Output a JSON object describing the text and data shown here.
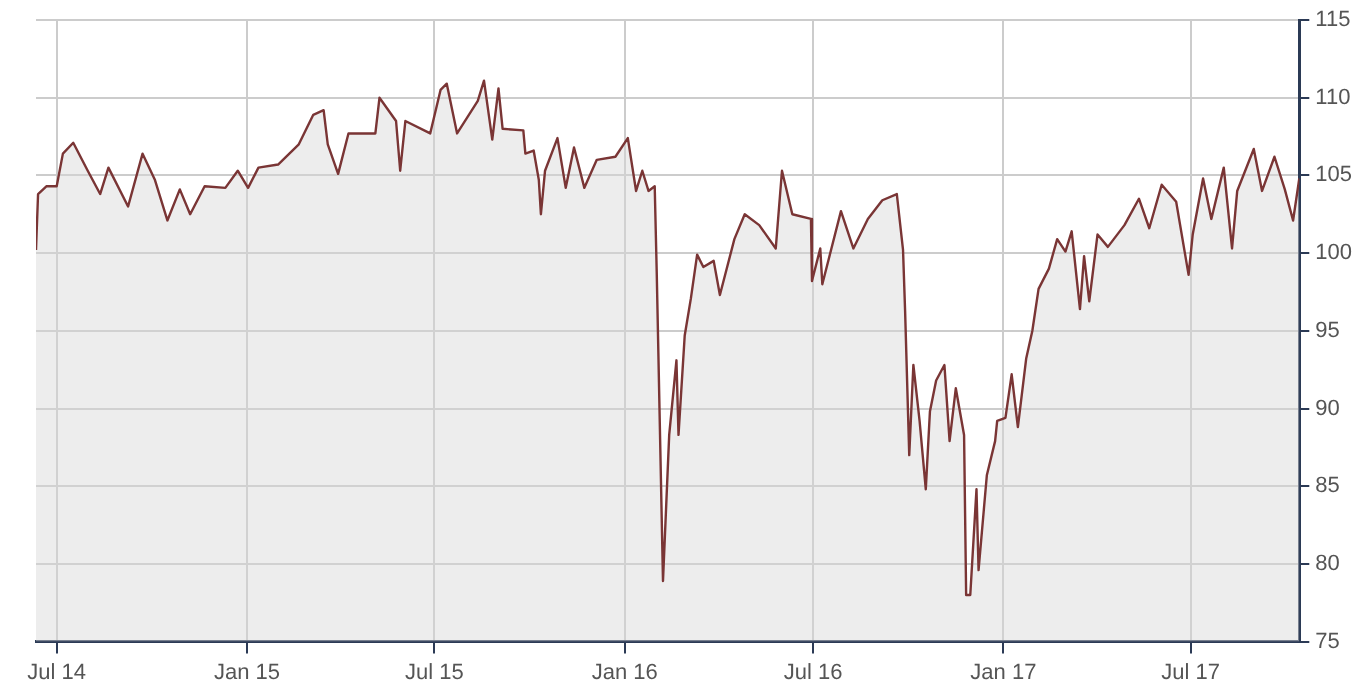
{
  "chart_data": {
    "type": "area",
    "x": [
      "2014-06-11",
      "2014-06-13",
      "2014-06-21",
      "2014-07-01",
      "2014-07-07",
      "2014-07-17",
      "2014-07-31",
      "2014-08-12",
      "2014-08-20",
      "2014-09-08",
      "2014-09-22",
      "2014-10-04",
      "2014-10-16",
      "2014-10-28",
      "2014-11-07",
      "2014-11-21",
      "2014-12-11",
      "2014-12-23",
      "2015-01-02",
      "2015-01-12",
      "2015-01-31",
      "2015-02-20",
      "2015-03-06",
      "2015-03-16",
      "2015-03-20",
      "2015-03-30",
      "2015-04-09",
      "2015-05-05",
      "2015-05-09",
      "2015-05-25",
      "2015-05-29",
      "2015-06-03",
      "2015-06-27",
      "2015-07-07",
      "2015-07-13",
      "2015-07-23",
      "2015-08-12",
      "2015-08-18",
      "2015-08-26",
      "2015-09-01",
      "2015-09-05",
      "2015-09-25",
      "2015-09-27",
      "2015-10-05",
      "2015-10-10",
      "2015-10-12",
      "2015-10-16",
      "2015-10-28",
      "2015-11-05",
      "2015-11-13",
      "2015-11-23",
      "2015-12-05",
      "2015-12-23",
      "2016-01-04",
      "2016-01-12",
      "2016-01-18",
      "2016-01-24",
      "2016-01-30",
      "2016-02-01",
      "2016-02-07",
      "2016-02-13",
      "2016-02-20",
      "2016-02-22",
      "2016-02-28",
      "2016-03-05",
      "2016-03-11",
      "2016-03-17",
      "2016-03-27",
      "2016-04-02",
      "2016-04-16",
      "2016-04-26",
      "2016-05-10",
      "2016-05-26",
      "2016-06-01",
      "2016-06-11",
      "2016-06-29",
      "2016-06-30",
      "2016-07-08",
      "2016-07-10",
      "2016-07-28",
      "2016-08-09",
      "2016-08-23",
      "2016-09-06",
      "2016-09-20",
      "2016-09-26",
      "2016-09-28",
      "2016-10-02",
      "2016-10-06",
      "2016-10-12",
      "2016-10-18",
      "2016-10-22",
      "2016-10-28",
      "2016-11-05",
      "2016-11-10",
      "2016-11-16",
      "2016-11-24",
      "2016-11-26",
      "2016-11-30",
      "2016-12-06",
      "2016-12-08",
      "2016-12-16",
      "2016-12-24",
      "2016-12-26",
      "2017-01-03",
      "2017-01-09",
      "2017-01-15",
      "2017-01-23",
      "2017-01-29",
      "2017-02-04",
      "2017-02-14",
      "2017-02-22",
      "2017-03-02",
      "2017-03-08",
      "2017-03-16",
      "2017-03-20",
      "2017-03-25",
      "2017-04-02",
      "2017-04-12",
      "2017-04-28",
      "2017-05-12",
      "2017-05-22",
      "2017-06-03",
      "2017-06-17",
      "2017-06-29",
      "2017-07-03",
      "2017-07-13",
      "2017-07-21",
      "2017-08-02",
      "2017-08-10",
      "2017-08-15",
      "2017-08-31",
      "2017-09-08",
      "2017-09-20",
      "2017-09-30",
      "2017-10-08",
      "2017-10-14"
    ],
    "series": [
      {
        "color": "#7a3535",
        "values": [
          100.2,
          103.8,
          104.3,
          104.3,
          106.4,
          107.1,
          105.3,
          103.8,
          105.5,
          103.0,
          106.4,
          104.7,
          102.1,
          104.1,
          102.5,
          104.3,
          104.2,
          105.3,
          104.2,
          105.5,
          105.7,
          107.0,
          108.9,
          109.2,
          107.0,
          105.1,
          107.7,
          107.7,
          110.0,
          108.5,
          105.3,
          108.5,
          107.7,
          110.5,
          110.9,
          107.7,
          109.8,
          111.1,
          107.3,
          110.6,
          108.0,
          107.9,
          106.4,
          106.6,
          104.7,
          102.5,
          105.3,
          107.4,
          104.2,
          106.8,
          104.2,
          106.0,
          106.2,
          107.4,
          104.0,
          105.3,
          104.0,
          104.3,
          98.6,
          78.9,
          88.3,
          93.1,
          88.3,
          94.7,
          97.1,
          99.9,
          99.1,
          99.5,
          97.3,
          100.9,
          102.5,
          101.8,
          100.3,
          105.3,
          102.5,
          102.2,
          98.2,
          100.3,
          98.0,
          102.7,
          100.3,
          102.2,
          103.4,
          103.8,
          100.2,
          96.3,
          87.0,
          92.8,
          89.2,
          84.8,
          89.8,
          91.8,
          92.8,
          87.9,
          91.3,
          88.3,
          78.0,
          78.0,
          84.8,
          79.6,
          85.7,
          87.9,
          89.2,
          89.4,
          92.2,
          88.8,
          93.2,
          95.0,
          97.7,
          99.0,
          100.9,
          100.1,
          101.4,
          96.4,
          99.8,
          96.9,
          101.2,
          100.4,
          101.8,
          103.5,
          101.6,
          104.4,
          103.3,
          98.6,
          101.2,
          104.8,
          102.2,
          105.5,
          100.3,
          104.0,
          106.7,
          104.0,
          106.2,
          104.1,
          102.1,
          104.8
        ]
      }
    ],
    "xlim": [
      "2014-06-11",
      "2017-10-14"
    ],
    "xticks": [
      {
        "value": "2014-07-01",
        "label": "Jul 14"
      },
      {
        "value": "2015-01-01",
        "label": "Jan 15"
      },
      {
        "value": "2015-07-01",
        "label": "Jul 15"
      },
      {
        "value": "2016-01-01",
        "label": "Jan 16"
      },
      {
        "value": "2016-07-01",
        "label": "Jul 16"
      },
      {
        "value": "2017-01-01",
        "label": "Jan 17"
      },
      {
        "value": "2017-07-01",
        "label": "Jul 17"
      }
    ],
    "ylim": [
      75,
      115
    ],
    "yticks": [
      75,
      80,
      85,
      90,
      95,
      100,
      105,
      110,
      115
    ],
    "grid": true,
    "legend": false,
    "marker": "none",
    "line_style": "solid"
  }
}
